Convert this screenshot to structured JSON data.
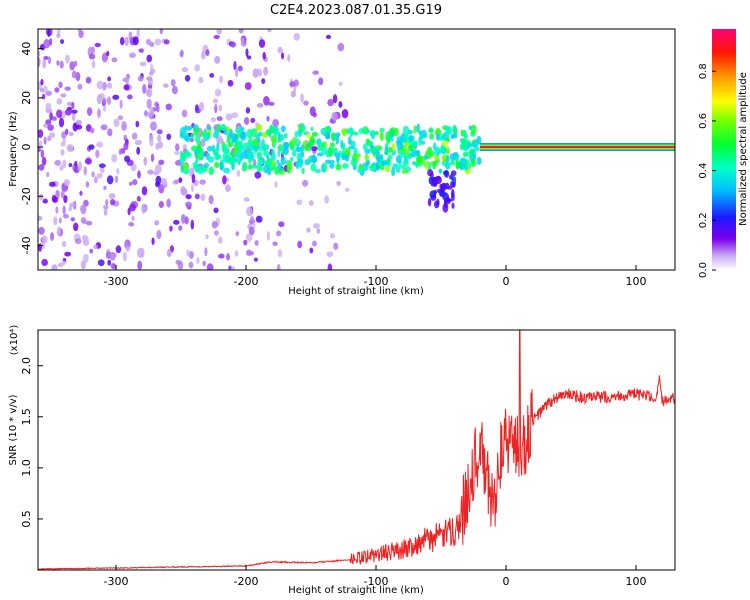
{
  "title": "C2E4.2023.087.01.35.G19",
  "chart_data": [
    {
      "type": "heatmap",
      "xlabel": "Height of straight line (km)",
      "ylabel": "Frequency (Hz)",
      "xlim": [
        -360,
        130
      ],
      "ylim": [
        -50,
        48
      ],
      "xticks": [
        -300,
        -200,
        -100,
        0,
        100
      ],
      "yticks": [
        -40,
        -20,
        0,
        20,
        40
      ],
      "colorbar": {
        "label": "Normalized spectral amplitude",
        "ticks": [
          "0.0",
          "0.2",
          "0.4",
          "0.6",
          "0.8"
        ],
        "tick_values": [
          0.0,
          0.2,
          0.4,
          0.6,
          0.8
        ],
        "range": [
          0,
          0.97
        ]
      },
      "features": [
        {
          "x_from": -360,
          "x_to": -120,
          "y_from": -50,
          "y_to": 48,
          "amplitude": 0.05
        },
        {
          "x_from": -250,
          "x_to": -20,
          "y_from": -10,
          "y_to": 8,
          "amplitude": 0.35
        },
        {
          "x_from": -60,
          "x_to": -40,
          "y_from": -25,
          "y_to": -10,
          "amplitude": 0.15
        },
        {
          "x_from": -20,
          "x_to": 130,
          "y_from": -1,
          "y_to": 1,
          "amplitude": 0.95
        }
      ]
    },
    {
      "type": "line",
      "xlabel": "Height of straight line (km)",
      "ylabel": "SNR (10 * v/v)",
      "y_multiplier": "(x10⁴)",
      "xlim": [
        -360,
        130
      ],
      "ylim": [
        0,
        2.35
      ],
      "xticks": [
        -300,
        -200,
        -100,
        0,
        100
      ],
      "yticks": [
        0.5,
        1.0,
        1.5,
        2.0
      ],
      "ytick_labels": [
        "0.5",
        "1.0",
        "1.5",
        "2.0"
      ],
      "color": "#ee2222",
      "series": [
        {
          "x": [
            -360,
            -300,
            -250,
            -200,
            -180,
            -150,
            -120,
            -100,
            -80,
            -60,
            -45,
            -35,
            -28,
            -20,
            -15,
            -10,
            -5,
            0,
            5,
            10,
            15,
            20,
            30,
            40,
            50,
            60,
            80,
            100,
            110,
            115,
            118,
            120,
            125,
            130
          ],
          "y": [
            0.01,
            0.02,
            0.03,
            0.04,
            0.08,
            0.07,
            0.1,
            0.15,
            0.2,
            0.3,
            0.35,
            0.45,
            0.9,
            1.2,
            0.9,
            0.6,
            1.1,
            1.25,
            1.3,
            1.15,
            1.25,
            1.45,
            1.6,
            1.7,
            1.72,
            1.68,
            1.7,
            1.72,
            1.7,
            1.62,
            1.85,
            1.65,
            1.7,
            1.67
          ]
        }
      ]
    }
  ]
}
